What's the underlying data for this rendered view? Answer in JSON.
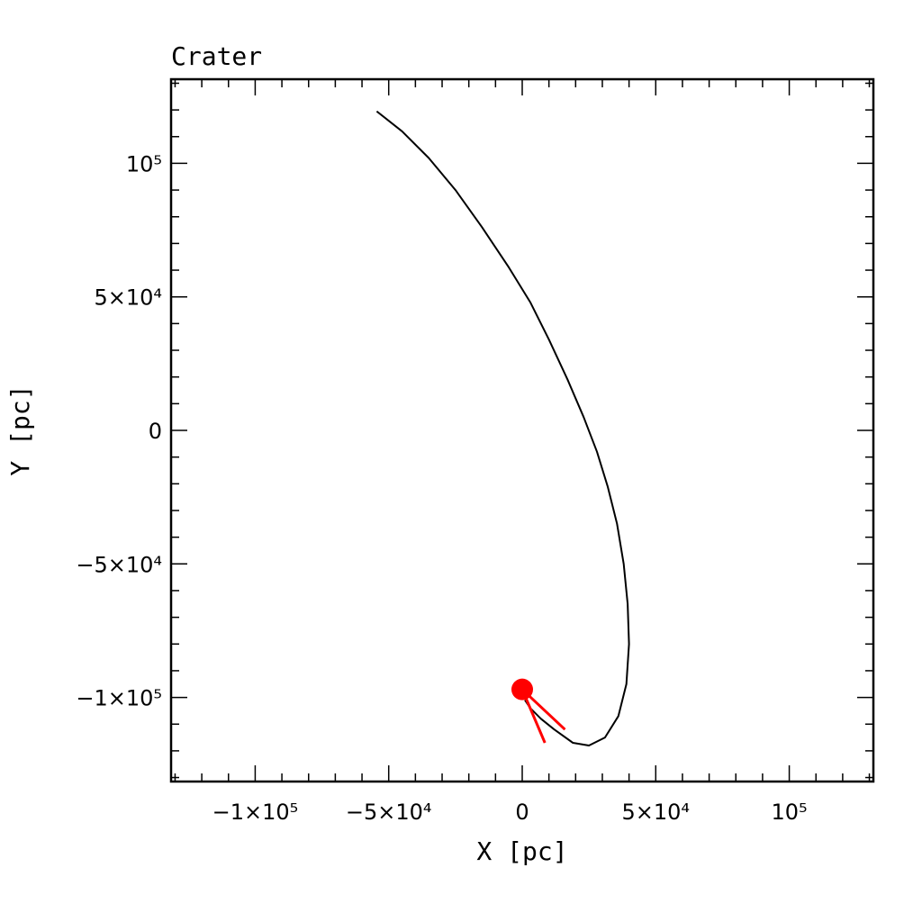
{
  "chart_data": {
    "type": "line",
    "title": "Crater",
    "xlabel": "X [pc]",
    "ylabel": "Y [pc]",
    "xlim": [
      -131500,
      131500
    ],
    "ylim": [
      -131500,
      131500
    ],
    "grid": false,
    "x_ticks": [
      {
        "value": -100000,
        "label": "−1×10⁵"
      },
      {
        "value": -50000,
        "label": "−5×10⁴"
      },
      {
        "value": 0,
        "label": "0"
      },
      {
        "value": 50000,
        "label": "5×10⁴"
      },
      {
        "value": 100000,
        "label": "10⁵"
      }
    ],
    "y_ticks": [
      {
        "value": 100000,
        "label": "10⁵"
      },
      {
        "value": 50000,
        "label": "5×10⁴"
      },
      {
        "value": 0,
        "label": "0"
      },
      {
        "value": -50000,
        "label": "−5×10⁴"
      },
      {
        "value": -100000,
        "label": "−1×10⁵"
      }
    ],
    "series": [
      {
        "color": "#000000",
        "points": [
          [
            -54500,
            119500
          ],
          [
            -45000,
            112000
          ],
          [
            -35000,
            102000
          ],
          [
            -25000,
            90000
          ],
          [
            -15000,
            76000
          ],
          [
            -5000,
            61000
          ],
          [
            3000,
            48000
          ],
          [
            10000,
            34000
          ],
          [
            17000,
            19000
          ],
          [
            23000,
            5000
          ],
          [
            28000,
            -8000
          ],
          [
            32000,
            -21000
          ],
          [
            35500,
            -35000
          ],
          [
            38000,
            -50000
          ],
          [
            39500,
            -65000
          ],
          [
            40000,
            -80000
          ],
          [
            39000,
            -95000
          ],
          [
            36000,
            -107000
          ],
          [
            31000,
            -115000
          ],
          [
            25000,
            -118000
          ],
          [
            19000,
            -117000
          ],
          [
            12000,
            -112000
          ],
          [
            7000,
            -108000
          ],
          [
            3000,
            -104000
          ],
          [
            1000,
            -101000
          ]
        ]
      }
    ],
    "current_position": {
      "x": 0,
      "y": -97000,
      "color": "#ff0000"
    },
    "velocity_vectors": [
      {
        "x1": 0,
        "y1": -97000,
        "x2": 16000,
        "y2": -112000,
        "color": "#ff0000"
      },
      {
        "x1": 0,
        "y1": -97000,
        "x2": 8500,
        "y2": -117000,
        "color": "#ff0000"
      }
    ]
  }
}
